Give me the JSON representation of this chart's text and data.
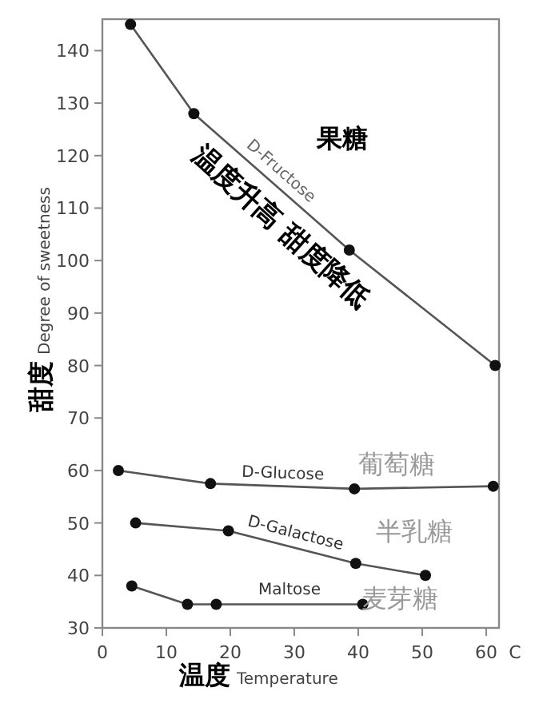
{
  "chart_data": {
    "type": "line",
    "ylabel": "甜度 Degree of sweetness",
    "xlabel": "温度 Temperature",
    "xlim": [
      0,
      62
    ],
    "ylim": [
      30,
      146
    ],
    "xticks": [
      0,
      10,
      20,
      30,
      40,
      50,
      60
    ],
    "yticks": [
      30,
      40,
      50,
      60,
      70,
      80,
      90,
      100,
      110,
      120,
      130,
      140
    ],
    "marker": "circle",
    "line_style": "solid",
    "grid": false,
    "series": [
      {
        "name": "D-Fructose",
        "color": "#555555",
        "x": [
          4.4,
          14.3,
          38.6,
          61.4
        ],
        "values": [
          145,
          128,
          102,
          80
        ]
      },
      {
        "name": "D-Glucose",
        "color": "#555555",
        "x": [
          2.5,
          16.9,
          39.4,
          61.1
        ],
        "values": [
          60,
          57.5,
          56.5,
          57
        ]
      },
      {
        "name": "D-Galactose",
        "color": "#555555",
        "x": [
          5.2,
          19.7,
          39.6,
          50.5
        ],
        "values": [
          50,
          48.5,
          42.3,
          40
        ]
      },
      {
        "name": "Maltose",
        "color": "#555555",
        "x": [
          4.6,
          13.3,
          17.8,
          40.7
        ],
        "values": [
          38,
          34.5,
          34.5,
          34.5
        ]
      }
    ],
    "annotations": [
      "果糖",
      "温度升高 甜度降低",
      "葡萄糖",
      "半乳糖",
      "麦芽糖",
      "C"
    ]
  }
}
